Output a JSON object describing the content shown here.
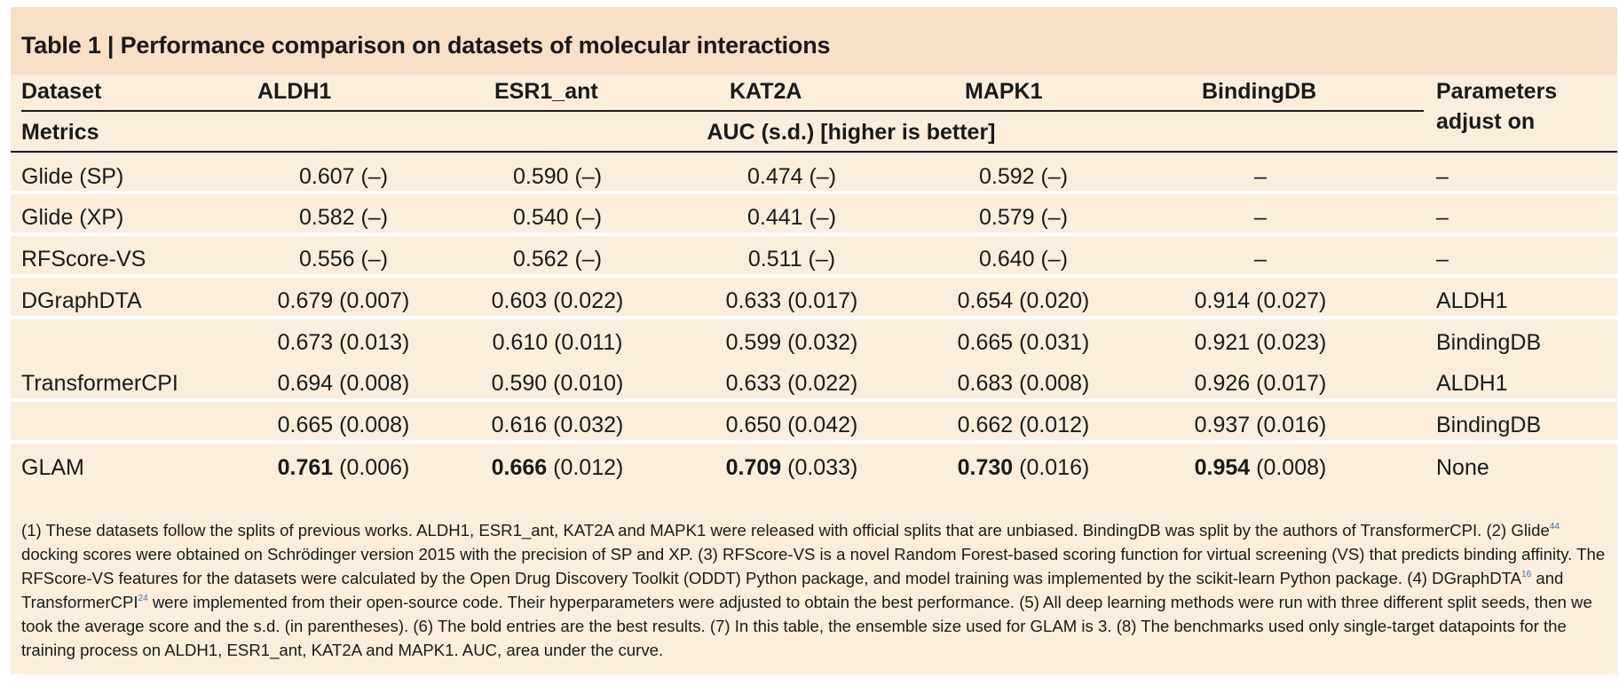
{
  "title": "Table 1 | Performance comparison on datasets of molecular interactions",
  "header": {
    "dataset_label": "Dataset",
    "datasets": [
      "ALDH1",
      "ESR1_ant",
      "KAT2A",
      "MAPK1",
      "BindingDB"
    ],
    "param_label_1": "Parameters",
    "param_label_2": "adjust on",
    "metrics_label": "Metrics",
    "metric_desc": "AUC (s.d.) [higher is better]"
  },
  "rows": [
    {
      "method": "Glide (SP)",
      "cells": [
        {
          "v": "0.607",
          "sd": " (–)"
        },
        {
          "v": "0.590",
          "sd": " (–)"
        },
        {
          "v": "0.474",
          "sd": " (–)"
        },
        {
          "v": "0.592",
          "sd": " (–)"
        },
        {
          "v": "–",
          "sd": ""
        }
      ],
      "param": "–"
    },
    {
      "method": "Glide (XP)",
      "cells": [
        {
          "v": "0.582",
          "sd": " (–)"
        },
        {
          "v": "0.540",
          "sd": " (–)"
        },
        {
          "v": "0.441",
          "sd": " (–)"
        },
        {
          "v": "0.579",
          "sd": " (–)"
        },
        {
          "v": "–",
          "sd": ""
        }
      ],
      "param": "–"
    },
    {
      "method": "RFScore-VS",
      "cells": [
        {
          "v": "0.556",
          "sd": " (–)"
        },
        {
          "v": "0.562",
          "sd": " (–)"
        },
        {
          "v": "0.511",
          "sd": " (–)"
        },
        {
          "v": "0.640",
          "sd": " (–)"
        },
        {
          "v": "–",
          "sd": ""
        }
      ],
      "param": "–"
    },
    {
      "method": "DGraphDTA",
      "cells": [
        {
          "v": "0.679",
          "sd": " (0.007)"
        },
        {
          "v": "0.603",
          "sd": " (0.022)"
        },
        {
          "v": "0.633",
          "sd": " (0.017)"
        },
        {
          "v": "0.654",
          "sd": " (0.020)"
        },
        {
          "v": "0.914",
          "sd": " (0.027)"
        }
      ],
      "param": "ALDH1"
    },
    {
      "method": "",
      "cells": [
        {
          "v": "0.673",
          "sd": " (0.013)"
        },
        {
          "v": "0.610",
          "sd": " (0.011)"
        },
        {
          "v": "0.599",
          "sd": " (0.032)"
        },
        {
          "v": "0.665",
          "sd": " (0.031)"
        },
        {
          "v": "0.921",
          "sd": " (0.023)"
        }
      ],
      "param": "BindingDB"
    },
    {
      "method": "TransformerCPI",
      "cells": [
        {
          "v": "0.694",
          "sd": " (0.008)"
        },
        {
          "v": "0.590",
          "sd": " (0.010)"
        },
        {
          "v": "0.633",
          "sd": " (0.022)"
        },
        {
          "v": "0.683",
          "sd": " (0.008)"
        },
        {
          "v": "0.926",
          "sd": " (0.017)"
        }
      ],
      "param": "ALDH1"
    },
    {
      "method": "",
      "cells": [
        {
          "v": "0.665",
          "sd": " (0.008)"
        },
        {
          "v": "0.616",
          "sd": " (0.032)"
        },
        {
          "v": "0.650",
          "sd": " (0.042)"
        },
        {
          "v": "0.662",
          "sd": " (0.012)"
        },
        {
          "v": "0.937",
          "sd": " (0.016)"
        }
      ],
      "param": "BindingDB"
    },
    {
      "method": "GLAM",
      "cells": [
        {
          "v": "0.761",
          "sd": " (0.006)",
          "bold": true
        },
        {
          "v": "0.666",
          "sd": " (0.012)",
          "bold": true
        },
        {
          "v": "0.709",
          "sd": " (0.033)",
          "bold": true
        },
        {
          "v": "0.730",
          "sd": " (0.016)",
          "bold": true
        },
        {
          "v": "0.954",
          "sd": " (0.008)",
          "bold": true
        }
      ],
      "param": "None"
    }
  ],
  "footnotes": [
    {
      "t": "(1) These datasets follow the splits of previous works. ALDH1, ESR1_ant, KAT2A and MAPK1 were released with official splits that are unbiased. BindingDB was split by the authors of TransformerCPI. (2) Glide"
    },
    {
      "sup": "44"
    },
    {
      "t": " docking scores were obtained on Schrödinger version 2015 with the precision of SP and XP. (3) RFScore-VS is a novel Random Forest-based scoring function for virtual screening (VS) that predicts binding affinity. The RFScore-VS features for the datasets were calculated by the Open Drug Discovery Toolkit (ODDT) Python package, and model training was implemented by the scikit-learn Python package. (4) DGraphDTA"
    },
    {
      "sup": "16"
    },
    {
      "t": " and TransformerCPI"
    },
    {
      "sup": "24"
    },
    {
      "t": " were implemented from their open-source code. Their hyperparameters were adjusted to obtain the best performance. (5) All deep learning methods were run with three different split seeds, then we took the average score and the s.d. (in parentheses). (6) The bold entries are the best results. (7) In this table, the ensemble size used for GLAM is 3. (8) The benchmarks used only single-target datapoints for the training process on ALDH1, ESR1_ant, KAT2A and MAPK1. AUC, area under the curve."
    }
  ]
}
